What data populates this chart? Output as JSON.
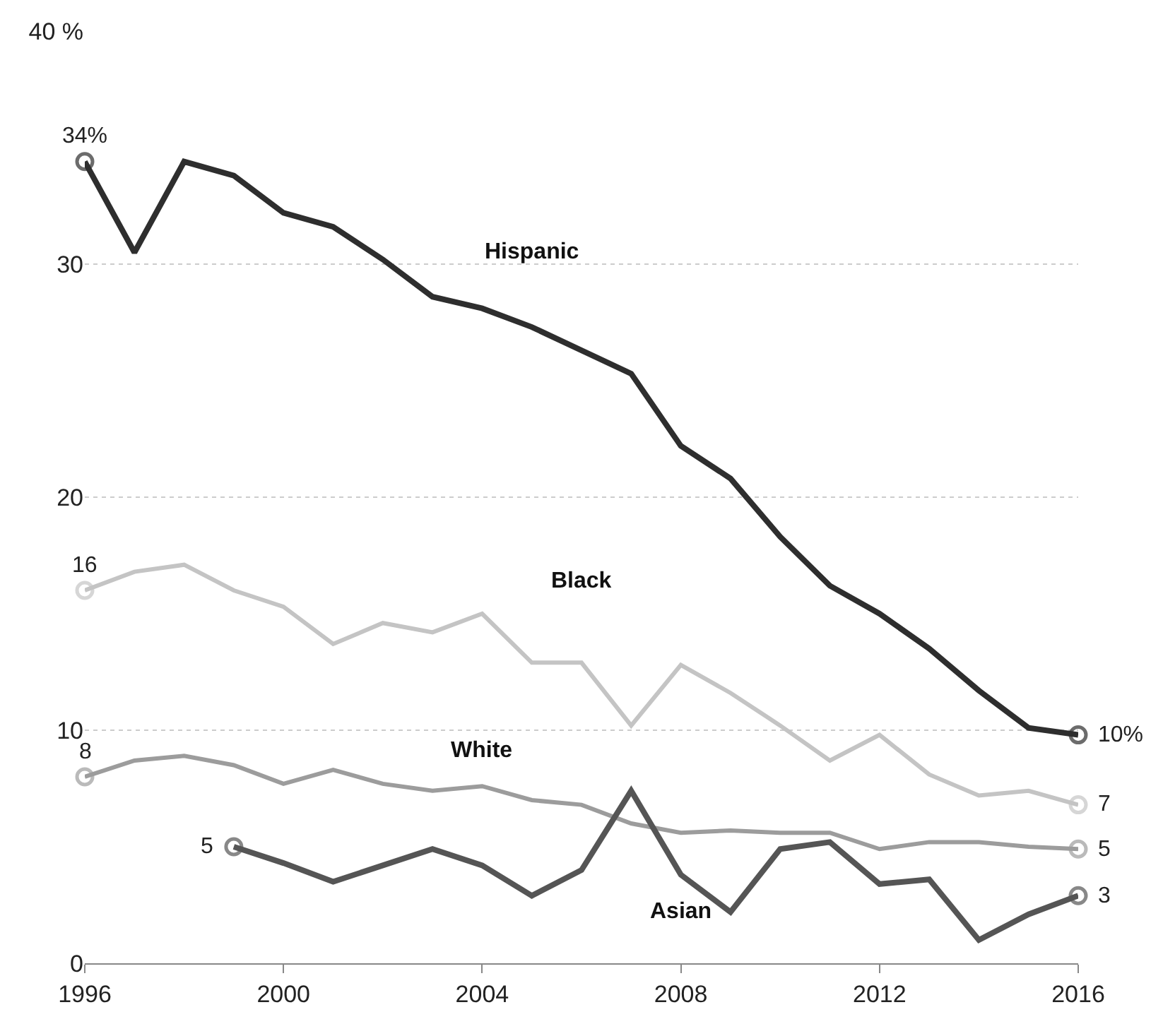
{
  "chart_data": {
    "type": "line",
    "x": [
      1996,
      1997,
      1998,
      1999,
      2000,
      2001,
      2002,
      2003,
      2004,
      2005,
      2006,
      2007,
      2008,
      2009,
      2010,
      2011,
      2012,
      2013,
      2014,
      2015,
      2016
    ],
    "series": [
      {
        "name": "Hispanic",
        "color": "#2e2e2e",
        "values": [
          34.4,
          30.5,
          34.4,
          33.8,
          32.2,
          31.6,
          30.2,
          28.6,
          28.1,
          27.3,
          26.3,
          25.3,
          22.2,
          20.8,
          18.3,
          16.2,
          15.0,
          13.5,
          11.7,
          10.1,
          9.8
        ],
        "value_labels": [
          "34%",
          null,
          null,
          null,
          null,
          null,
          null,
          null,
          null,
          null,
          null,
          null,
          null,
          null,
          null,
          null,
          null,
          null,
          null,
          null,
          "10%"
        ]
      },
      {
        "name": "Black",
        "color": "#c4c4c4",
        "values": [
          16.0,
          16.8,
          17.1,
          16.0,
          15.3,
          13.7,
          14.6,
          14.2,
          15.0,
          12.9,
          12.9,
          10.2,
          12.8,
          11.6,
          10.2,
          8.7,
          9.8,
          8.1,
          7.2,
          7.4,
          6.8
        ],
        "value_labels": [
          "16",
          null,
          null,
          null,
          null,
          null,
          null,
          null,
          null,
          null,
          null,
          null,
          null,
          null,
          null,
          null,
          null,
          null,
          null,
          null,
          "7"
        ]
      },
      {
        "name": "White",
        "color": "#9c9c9c",
        "values": [
          8.0,
          8.7,
          8.9,
          8.5,
          7.7,
          8.3,
          7.7,
          7.4,
          7.6,
          7.0,
          6.8,
          6.0,
          5.6,
          5.7,
          5.6,
          5.6,
          4.9,
          5.2,
          5.2,
          5.0,
          4.9
        ],
        "value_labels": [
          "8",
          null,
          null,
          null,
          null,
          null,
          null,
          null,
          null,
          null,
          null,
          null,
          null,
          null,
          null,
          null,
          null,
          null,
          null,
          null,
          "5"
        ]
      },
      {
        "name": "Asian",
        "color": "#555555",
        "values": [
          null,
          null,
          null,
          5.0,
          4.3,
          3.5,
          4.2,
          4.9,
          4.2,
          2.9,
          4.0,
          7.4,
          3.8,
          2.2,
          4.9,
          5.2,
          3.4,
          3.6,
          1.0,
          2.1,
          2.9
        ],
        "value_labels": [
          null,
          null,
          null,
          "5",
          null,
          null,
          null,
          null,
          null,
          null,
          null,
          null,
          null,
          null,
          null,
          null,
          null,
          null,
          null,
          null,
          "3"
        ]
      }
    ],
    "xlim": [
      1996,
      2016
    ],
    "xticks": [
      1996,
      2000,
      2004,
      2008,
      2012,
      2016
    ],
    "ylim": [
      0,
      40
    ],
    "yticks": [
      0,
      10,
      20,
      30,
      {
        "value": 40,
        "label": "40 %"
      }
    ],
    "grid": "y",
    "legend": false,
    "marker": "none",
    "line_style": "solid"
  }
}
